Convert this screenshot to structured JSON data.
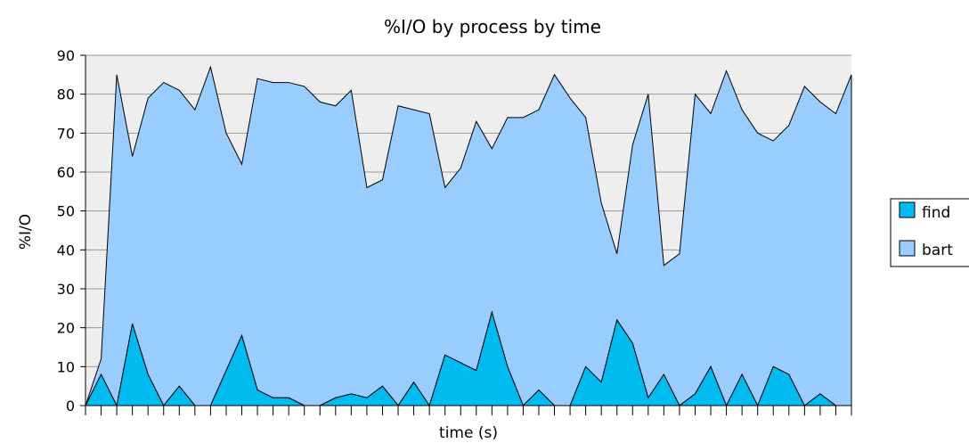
{
  "chart_data": {
    "type": "area",
    "stacked": true,
    "title": "%I/O by process by time",
    "xlabel": "time (s)",
    "ylabel": "%I/O",
    "ylim": [
      0,
      90
    ],
    "yticks": [
      0,
      10,
      20,
      30,
      40,
      50,
      60,
      70,
      80,
      90
    ],
    "x_tick_labels_shown": false,
    "x": [
      0,
      1,
      2,
      3,
      4,
      5,
      6,
      7,
      8,
      9,
      10,
      11,
      12,
      13,
      14,
      15,
      16,
      17,
      18,
      19,
      20,
      21,
      22,
      23,
      24,
      25,
      26,
      27,
      28,
      29,
      30,
      31,
      32,
      33,
      34,
      35,
      36,
      37,
      38,
      39,
      40,
      41,
      42,
      43,
      44,
      45,
      46,
      47,
      48,
      49
    ],
    "grid": "horizontal",
    "legend_position": "right",
    "series": [
      {
        "name": "find",
        "color": "#00bbf0",
        "values": [
          0,
          8,
          0,
          21,
          8,
          0,
          5,
          0,
          0,
          9,
          18,
          4,
          2,
          2,
          0,
          0,
          2,
          3,
          2,
          5,
          0,
          6,
          0,
          13,
          11,
          9,
          24,
          10,
          0,
          4,
          0,
          0,
          10,
          6,
          22,
          16,
          2,
          8,
          0,
          3,
          10,
          0,
          8,
          0,
          10,
          8,
          0,
          3,
          0,
          0
        ]
      },
      {
        "name": "bart",
        "color": "#99ccff",
        "values": [
          0,
          4,
          85,
          43,
          71,
          83,
          76,
          76,
          87,
          61,
          44,
          80,
          81,
          81,
          82,
          78,
          75,
          78,
          54,
          53,
          77,
          70,
          75,
          43,
          50,
          64,
          42,
          64,
          74,
          72,
          85,
          79,
          64,
          46,
          17,
          51,
          78,
          28,
          39,
          77,
          65,
          86,
          68,
          70,
          58,
          64,
          82,
          75,
          75,
          85
        ]
      }
    ]
  }
}
